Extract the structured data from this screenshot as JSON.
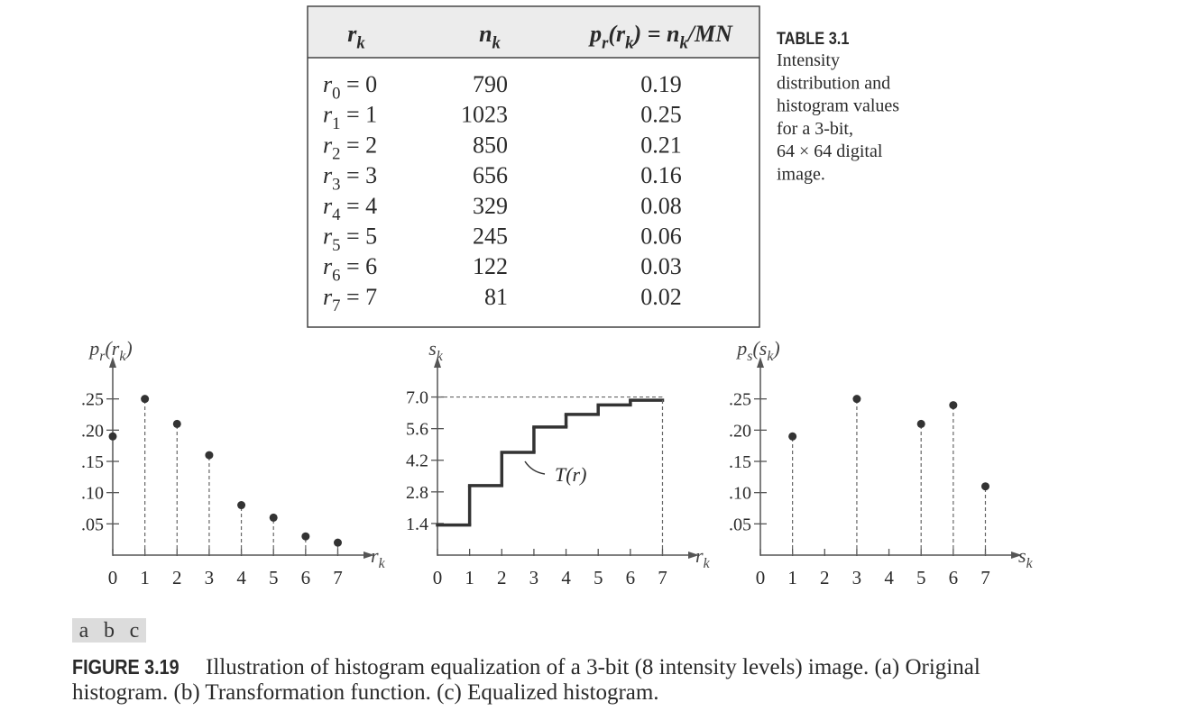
{
  "table": {
    "header": [
      [
        "r",
        "k"
      ],
      [
        "n",
        "k"
      ],
      [
        "p",
        "r",
        "(r",
        "k",
        ")  = n",
        "k",
        "/MN"
      ]
    ],
    "rows": [
      [
        [
          "r",
          "0",
          " = 0"
        ],
        790,
        0.19
      ],
      [
        [
          "r",
          "1",
          " = 1"
        ],
        1023,
        0.25
      ],
      [
        [
          "r",
          "2",
          " = 2"
        ],
        850,
        0.21
      ],
      [
        [
          "r",
          "3",
          " = 3"
        ],
        656,
        0.16
      ],
      [
        [
          "r",
          "4",
          " = 4"
        ],
        329,
        0.08
      ],
      [
        [
          "r",
          "5",
          " = 5"
        ],
        245,
        0.06
      ],
      [
        [
          "r",
          "6",
          " = 6"
        ],
        122,
        0.03
      ],
      [
        [
          "r",
          "7",
          " = 7"
        ],
        81,
        0.02
      ]
    ],
    "caption": {
      "label": "TABLE 3.1",
      "lines": [
        "Intensity",
        "distribution and",
        "histogram values",
        "for a 3-bit,",
        "64 × 64 digital",
        "image."
      ]
    }
  },
  "chart_data": [
    {
      "type": "stem",
      "y_label": [
        "p",
        "r",
        "(r",
        "k",
        ")"
      ],
      "x_label": [
        "r",
        "k"
      ],
      "x": [
        0,
        1,
        2,
        3,
        4,
        5,
        6,
        7
      ],
      "values": [
        0.19,
        0.25,
        0.21,
        0.16,
        0.08,
        0.06,
        0.03,
        0.02
      ],
      "xlim": [
        0,
        7.8
      ],
      "ylim": [
        0,
        0.3
      ],
      "xticks": [
        0,
        1,
        2,
        3,
        4,
        5,
        6,
        7
      ],
      "yticks": [
        {
          "value": 0.05,
          "label": ".05"
        },
        {
          "value": 0.1,
          "label": ".10"
        },
        {
          "value": 0.15,
          "label": ".15"
        },
        {
          "value": 0.2,
          "label": ".20"
        },
        {
          "value": 0.25,
          "label": ".25"
        }
      ],
      "color": "#333333"
    },
    {
      "type": "step",
      "y_label": [
        "s",
        "k"
      ],
      "x_label": [
        "r",
        "k"
      ],
      "x": [
        0,
        1,
        2,
        3,
        4,
        5,
        6,
        7
      ],
      "values": [
        1.33,
        3.08,
        4.55,
        5.67,
        6.23,
        6.65,
        6.86,
        7.0
      ],
      "xlim": [
        0,
        7.8
      ],
      "ylim": [
        0,
        8.3
      ],
      "xticks": [
        0,
        1,
        2,
        3,
        4,
        5,
        6,
        7
      ],
      "yticks": [
        1.4,
        2.8,
        4.2,
        5.6,
        {
          "value": 7,
          "label": "7.0"
        }
      ],
      "annotation": "T(r)",
      "color": "#333333"
    },
    {
      "type": "stem",
      "y_label": [
        "p",
        "s",
        "(s",
        "k",
        ")"
      ],
      "x_label": [
        "s",
        "k"
      ],
      "x": [
        1,
        3,
        5,
        6,
        7
      ],
      "values": [
        0.19,
        0.25,
        0.21,
        0.24,
        0.11
      ],
      "xlim": [
        0,
        7.8
      ],
      "ylim": [
        0,
        0.3
      ],
      "xticks": [
        0,
        1,
        2,
        3,
        4,
        5,
        6,
        7
      ],
      "yticks": [
        {
          "value": 0.05,
          "label": ".05"
        },
        {
          "value": 0.1,
          "label": ".10"
        },
        {
          "value": 0.15,
          "label": ".15"
        },
        {
          "value": 0.2,
          "label": ".20"
        },
        {
          "value": 0.25,
          "label": ".25"
        }
      ],
      "color": "#333333"
    }
  ],
  "figure": {
    "panel_labels": [
      "a",
      "b",
      "c"
    ],
    "label": "FIGURE 3.19",
    "lines": [
      "Illustration of histogram equalization of a 3-bit (8 intensity levels) image. (a) Original",
      "histogram. (b) Transformation function. (c) Equalized histogram."
    ]
  }
}
